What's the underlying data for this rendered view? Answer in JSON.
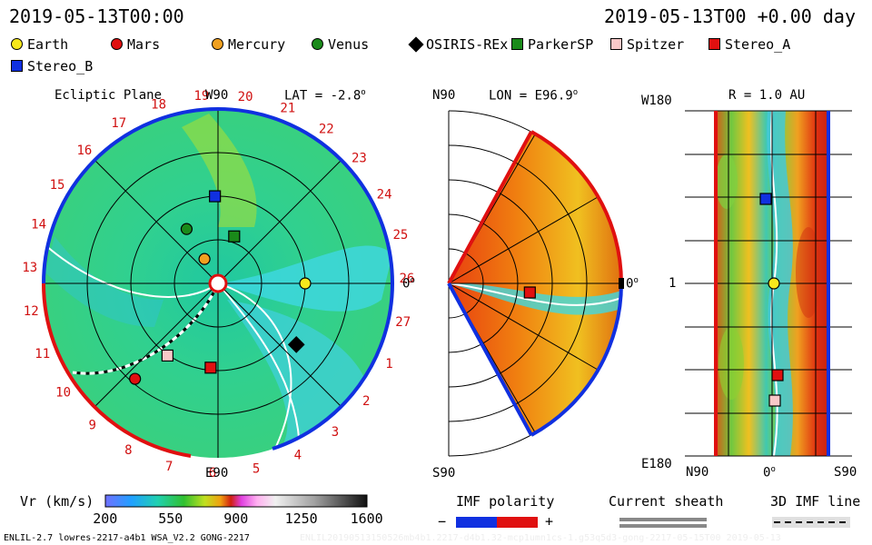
{
  "header": {
    "datetime": "2019-05-13T00:00",
    "datetime_right": "2019-05-13T00 +0.00 day"
  },
  "legend": [
    {
      "label": "Earth",
      "shape": "circle",
      "color": "#f7e81c"
    },
    {
      "label": "Mars",
      "shape": "circle",
      "color": "#e01010"
    },
    {
      "label": "Mercury",
      "shape": "circle",
      "color": "#f0a020"
    },
    {
      "label": "Venus",
      "shape": "circle",
      "color": "#1a8a1a"
    },
    {
      "label": "OSIRIS-REx",
      "shape": "diamond",
      "color": "#000000"
    },
    {
      "label": "ParkerSP",
      "shape": "square",
      "color": "#1a8a1a"
    },
    {
      "label": "Spitzer",
      "shape": "square",
      "color": "#f8c8c8"
    },
    {
      "label": "Stereo_A",
      "shape": "square",
      "color": "#e01010"
    },
    {
      "label": "Stereo_B",
      "shape": "square",
      "color": "#1030e0"
    }
  ],
  "panels": {
    "ecliptic": {
      "title": "Ecliptic Plane",
      "top_label": "W90",
      "bottom_label": "E90",
      "right_label": "0",
      "lat_label": "LAT = -2.8"
    },
    "meridional": {
      "lon_label": "LON = E96.9",
      "top_label": "N90",
      "bottom_label": "S90",
      "right_label": "0"
    },
    "rsurface": {
      "r_label": "R = 1.0 AU",
      "top_left": "W180",
      "mid_left": "1",
      "bottom_left": "E180",
      "x_left": "N90",
      "x_mid": "0",
      "x_right": "S90"
    }
  },
  "carrington_ticks": [
    "19",
    "20",
    "21",
    "22",
    "23",
    "24",
    "25",
    "26",
    "27",
    "1",
    "2",
    "3",
    "4",
    "5",
    "6",
    "7",
    "8",
    "9",
    "10",
    "11",
    "12",
    "13",
    "14",
    "15",
    "16",
    "17",
    "18"
  ],
  "colorbar": {
    "label": "Vr (km/s)",
    "ticks": [
      "200",
      "550",
      "900",
      "1250",
      "1600"
    ]
  },
  "imf": {
    "label": "IMF polarity",
    "minus": "−",
    "plus": "+"
  },
  "sheath": {
    "label": "Current sheath"
  },
  "imf3d": {
    "label": "3D IMF line"
  },
  "footer": {
    "left": "ENLIL-2.7 lowres-2217-a4b1 WSA_V2.2 GONG-2217",
    "right": "ENLIL20190513150526mb4b1.2217-d4b1.32-mcp1umn1cs-1.g53q5d3-gong-2217-05-15T00  2019-05-13"
  },
  "chart_data": [
    {
      "type": "heatmap",
      "title": "Ecliptic Plane",
      "variable": "Vr (km/s)",
      "range": [
        200,
        1600
      ],
      "bodies": [
        {
          "name": "Earth",
          "r_au": 1.0,
          "angle_deg": 0
        },
        {
          "name": "Mars",
          "r_au": 1.45,
          "angle_deg": 229
        },
        {
          "name": "Mercury",
          "r_au": 0.32,
          "angle_deg": 119
        },
        {
          "name": "Venus",
          "r_au": 0.72,
          "angle_deg": 120
        },
        {
          "name": "OSIRIS-REx",
          "r_au": 1.14,
          "angle_deg": 322
        },
        {
          "name": "ParkerSP",
          "r_au": 0.57,
          "angle_deg": 71
        },
        {
          "name": "Spitzer",
          "r_au": 1.01,
          "angle_deg": 235
        },
        {
          "name": "Stereo_A",
          "r_au": 0.97,
          "angle_deg": 265
        },
        {
          "name": "Stereo_B",
          "r_au": 1.0,
          "angle_deg": 92
        }
      ]
    },
    {
      "type": "heatmap",
      "title": "LON = E96.9",
      "variable": "Vr (km/s)",
      "bodies": [
        {
          "name": "Stereo_A"
        }
      ]
    },
    {
      "type": "heatmap",
      "title": "R = 1.0 AU",
      "variable": "Vr (km/s)",
      "bodies": [
        {
          "name": "Stereo_B"
        },
        {
          "name": "Earth"
        },
        {
          "name": "Stereo_A"
        },
        {
          "name": "Spitzer"
        }
      ]
    }
  ]
}
